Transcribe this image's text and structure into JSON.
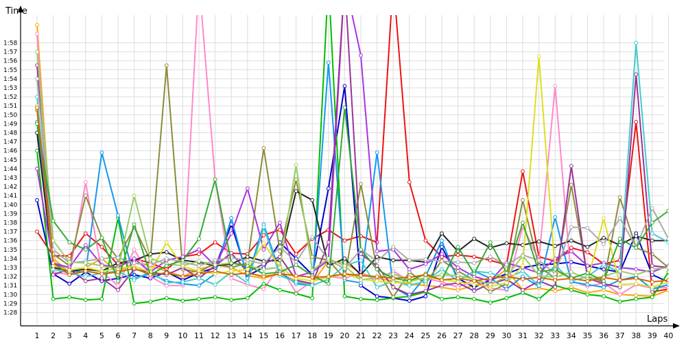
{
  "chart_data": {
    "type": "line",
    "ylabel": "Time",
    "xlabel": "Laps",
    "x": [
      1,
      2,
      3,
      4,
      5,
      6,
      7,
      8,
      9,
      10,
      11,
      12,
      13,
      14,
      15,
      16,
      17,
      18,
      19,
      20,
      21,
      22,
      23,
      24,
      25,
      26,
      27,
      28,
      29,
      30,
      31,
      32,
      33,
      34,
      35,
      36,
      37,
      38,
      39,
      40
    ],
    "x_tick_labels": [
      "1",
      "2",
      "3",
      "4",
      "5",
      "6",
      "7",
      "8",
      "9",
      "10",
      "11",
      "12",
      "13",
      "14",
      "15",
      "16",
      "17",
      "18",
      "19",
      "20",
      "21",
      "22",
      "23",
      "24",
      "25",
      "26",
      "27",
      "28",
      "29",
      "30",
      "31",
      "32",
      "33",
      "34",
      "35",
      "36",
      "37",
      "38",
      "39",
      "40"
    ],
    "y_tick_labels": [
      "1:28",
      "1:29",
      "1:30",
      "1:31",
      "1:32",
      "1:33",
      "1:34",
      "1:35",
      "1:36",
      "1:37",
      "1:38",
      "1:39",
      "1:40",
      "1:41",
      "1:42",
      "1:43",
      "1:44",
      "1:45",
      "1:46",
      "1:47",
      "1:48",
      "1:49",
      "1:50",
      "1:51",
      "1:52",
      "1:53",
      "1:54",
      "1:55",
      "1:56",
      "1:57",
      "1:58"
    ],
    "y_tick_values": [
      88,
      89,
      90,
      91,
      92,
      93,
      94,
      95,
      96,
      97,
      98,
      99,
      100,
      101,
      102,
      103,
      104,
      105,
      106,
      107,
      108,
      109,
      110,
      111,
      112,
      113,
      114,
      115,
      116,
      117,
      118
    ],
    "ylim": [
      87.5,
      119.5
    ],
    "y_unit": "seconds",
    "grid": true,
    "series": [
      {
        "color": "#ee1111",
        "values": [
          97.0,
          94.3,
          94.3,
          96.8,
          95.3,
          93.3,
          94.0,
          93.5,
          92.8,
          94.2,
          94.5,
          95.8,
          94.6,
          94.5,
          96.6,
          97.2,
          94.5,
          96.2,
          97.2,
          96.0,
          96.5,
          95.8,
          125,
          102.5,
          96.0,
          94.2,
          94.4,
          94.2,
          93.8,
          93.3,
          103.7,
          94.2,
          93.7,
          95.2,
          94.7,
          93.4,
          93.8,
          109.2,
          90.3,
          90.6
        ]
      },
      {
        "color": "#ffa500",
        "values": [
          120,
          94.0,
          92.5,
          93.0,
          94.0,
          92.5,
          93.5,
          93.2,
          92.6,
          92.0,
          92.8,
          93.3,
          93.0,
          92.1,
          91.8,
          92.3,
          91.5,
          91.2,
          93.8,
          93.5,
          92.4,
          91.8,
          91.5,
          91.2,
          91.0,
          90.8,
          90.5,
          91.0,
          91.5,
          92.8,
          90.5,
          90.7,
          90.4,
          90.8,
          90.2,
          90.5,
          90.0,
          89.9,
          89.8,
          90.5
        ]
      },
      {
        "color": "#0000cc",
        "values": [
          100.5,
          92.3,
          91.2,
          92.5,
          91.5,
          91.8,
          92.2,
          91.8,
          92.5,
          91.6,
          92.4,
          93.0,
          97.8,
          92.1,
          93.0,
          95.8,
          94.0,
          92.2,
          101.8,
          113.2,
          91.0,
          89.8,
          89.6,
          89.3,
          89.8,
          95.3,
          91.8,
          90.8,
          91.6,
          92.3,
          93.0,
          93.3,
          93.4,
          93.6,
          93.2,
          92.8,
          92.5,
          96.8,
          92.2,
          91.4
        ]
      },
      {
        "color": "#ff88cc",
        "values": [
          119,
          92.5,
          92.2,
          102.5,
          92.5,
          91.0,
          95.0,
          92.0,
          91.0,
          91.0,
          125,
          102.8,
          91.8,
          91.1,
          90.6,
          93.2,
          90.2,
          91.5,
          92.0,
          91.8,
          92.4,
          91.6,
          92.6,
          91.5,
          91.8,
          91.4,
          90.8,
          91.6,
          90.7,
          90.5,
          97.6,
          93.8,
          113.2,
          91.5,
          90.9,
          91.3,
          90.0,
          91.1,
          90.7,
          90.8
        ]
      },
      {
        "color": "#00bb00",
        "values": [
          106.0,
          89.5,
          89.7,
          89.4,
          89.5,
          98.5,
          89.0,
          89.2,
          89.6,
          89.3,
          89.5,
          89.7,
          89.4,
          89.6,
          91.2,
          90.5,
          90.1,
          89.6,
          125,
          89.8,
          89.5,
          89.4,
          89.6,
          89.8,
          90.3,
          89.5,
          89.7,
          89.5,
          89.1,
          89.6,
          90.2,
          89.5,
          91.0,
          90.5,
          90.0,
          89.8,
          89.2,
          89.5,
          89.7,
          92.5
        ]
      },
      {
        "color": "#1199ee",
        "values": [
          109.2,
          93.5,
          92.6,
          92.5,
          105.8,
          98.8,
          91.8,
          92.3,
          91.5,
          91.2,
          91.0,
          92.3,
          98.5,
          91.8,
          97.8,
          92.5,
          91.2,
          91.0,
          115.8,
          91.6,
          91.3,
          105.8,
          90.8,
          89.8,
          92.0,
          96.0,
          91.5,
          92.6,
          91.8,
          90.6,
          92.0,
          90.9,
          98.6,
          91.4,
          91.1,
          90.8,
          91.6,
          92.0,
          90.6,
          91.1
        ]
      },
      {
        "color": "#8b8b3a",
        "values": [
          110.5,
          94.5,
          93.2,
          101.0,
          96.3,
          94.0,
          97.5,
          93.8,
          115.5,
          92.8,
          92.5,
          93.5,
          93.0,
          93.5,
          106.3,
          94.8,
          102.8,
          94.2,
          93.8,
          91.8,
          102.3,
          92.8,
          89.7,
          92.5,
          91.2,
          93.8,
          92.6,
          91.6,
          90.3,
          91.2,
          100.5,
          93.1,
          91.8,
          102.2,
          92.0,
          91.4,
          100.8,
          95.2,
          94.5,
          93.0
        ]
      },
      {
        "color": "#222222",
        "values": [
          108.0,
          93.0,
          92.6,
          92.8,
          92.6,
          93.5,
          93.8,
          94.5,
          94.7,
          93.8,
          93.6,
          93.2,
          93.4,
          94.2,
          93.7,
          93.8,
          101.5,
          100.5,
          93.2,
          94.0,
          92.2,
          94.2,
          93.8,
          93.8,
          93.6,
          96.8,
          94.8,
          96.2,
          95.2,
          95.7,
          95.5,
          95.9,
          95.4,
          96.0,
          95.3,
          96.3,
          95.5,
          96.5,
          96.0,
          96.0
        ]
      },
      {
        "color": "#aa33dd",
        "values": [
          104.0,
          93.5,
          93.0,
          95.5,
          93.3,
          93.0,
          94.0,
          92.5,
          93.8,
          94.2,
          95.0,
          93.2,
          96.8,
          101.8,
          95.0,
          98.0,
          92.0,
          92.5,
          93.8,
          125,
          116.6,
          94.8,
          95.0,
          92.8,
          93.4,
          94.5,
          93.0,
          92.0,
          91.5,
          93.5,
          93.0,
          92.4,
          94.0,
          94.8,
          93.2,
          93.5,
          93.0,
          92.8,
          92.5,
          93.2
        ]
      },
      {
        "color": "#993399",
        "values": [
          115.5,
          92.2,
          92.8,
          91.5,
          91.8,
          90.5,
          92.8,
          92.5,
          92.2,
          93.0,
          91.8,
          93.2,
          94.6,
          92.5,
          93.4,
          94.2,
          91.6,
          91.2,
          95.8,
          125,
          94.5,
          93.2,
          90.8,
          90.0,
          90.4,
          91.0,
          91.3,
          90.4,
          91.2,
          91.7,
          90.5,
          91.5,
          90.8,
          104.3,
          91.8,
          91.2,
          90.8,
          114.5,
          93.2,
          93.0
        ]
      },
      {
        "color": "#44cccc",
        "values": [
          112.0,
          92.8,
          92.4,
          92.0,
          92.4,
          92.6,
          91.6,
          92.6,
          91.3,
          91.4,
          91.8,
          91.1,
          92.5,
          91.3,
          97.5,
          92.1,
          91.4,
          91.0,
          91.7,
          93.2,
          93.8,
          90.8,
          91.5,
          91.0,
          91.5,
          92.8,
          91.5,
          92.6,
          92.4,
          91.8,
          92.6,
          91.0,
          93.3,
          91.5,
          92.0,
          93.3,
          92.5,
          118.0,
          96.8,
          95.8
        ]
      },
      {
        "color": "#dddd22",
        "values": [
          111.0,
          93.2,
          92.7,
          93.0,
          92.6,
          92.9,
          93.1,
          92.5,
          95.8,
          93.1,
          92.6,
          92.3,
          92.6,
          92.8,
          95.7,
          93.0,
          91.8,
          91.5,
          91.9,
          92.3,
          91.7,
          91.5,
          91.3,
          91.4,
          91.9,
          91.7,
          91.4,
          91.1,
          90.9,
          91.3,
          93.2,
          116.5,
          92.6,
          91.8,
          91.5,
          98.5,
          91.1,
          91.2,
          90.8,
          91.4
        ]
      },
      {
        "color": "#aaaaaa",
        "values": [
          114.0,
          95.0,
          93.5,
          93.7,
          94.0,
          94.1,
          93.5,
          93.3,
          94.0,
          93.6,
          93.2,
          93.8,
          94.1,
          93.8,
          93.4,
          95.3,
          93.6,
          96.4,
          93.8,
          92.9,
          95.0,
          93.7,
          95.3,
          93.8,
          93.9,
          93.7,
          93.6,
          93.5,
          94.2,
          93.3,
          94.4,
          93.8,
          92.3,
          97.5,
          97.4,
          95.6,
          98.5,
          95.3,
          99.6,
          96.2
        ]
      },
      {
        "color": "#99cc66",
        "values": [
          117.0,
          96.0,
          93.6,
          93.5,
          93.2,
          92.8,
          101.0,
          94.0,
          93.4,
          93.2,
          93.7,
          93.3,
          93.5,
          93.2,
          92.8,
          93.0,
          104.4,
          92.7,
          94.0,
          93.2,
          91.6,
          91.9,
          92.3,
          91.6,
          91.8,
          92.2,
          92.1,
          91.7,
          91.1,
          92.0,
          94.3,
          92.1,
          91.9,
          92.5,
          91.7,
          92.0,
          92.6,
          92.2,
          92.8,
          93.0
        ]
      },
      {
        "color": "#33aa33",
        "values": [
          109.0,
          98.2,
          95.8,
          95.0,
          96.3,
          91.5,
          97.8,
          92.2,
          93.2,
          93.8,
          96.2,
          102.8,
          93.5,
          93.2,
          92.3,
          92.5,
          93.3,
          92.1,
          91.2,
          110.8,
          95.0,
          92.8,
          91.8,
          91.5,
          92.3,
          91.6,
          95.3,
          92.3,
          95.8,
          92.4,
          98.0,
          92.5,
          92.8,
          91.8,
          92.4,
          91.5,
          96.2,
          95.2,
          98.0,
          99.3
        ]
      },
      {
        "color": "#cc6600",
        "values": [
          110.8,
          93.5,
          92.2,
          92.6,
          92.3,
          92.5,
          92.9,
          92.2,
          92.4,
          92.0,
          92.3,
          92.6,
          92.2,
          92.4,
          92.0,
          92.3,
          92.1,
          91.9,
          92.0,
          92.3,
          92.1,
          92.0,
          91.8,
          91.9,
          92.2,
          91.6,
          91.8,
          91.5,
          91.8,
          92.0,
          91.7,
          91.9,
          91.6,
          91.8,
          91.5,
          91.9,
          91.6,
          91.8,
          91.4,
          91.6
        ]
      }
    ]
  }
}
